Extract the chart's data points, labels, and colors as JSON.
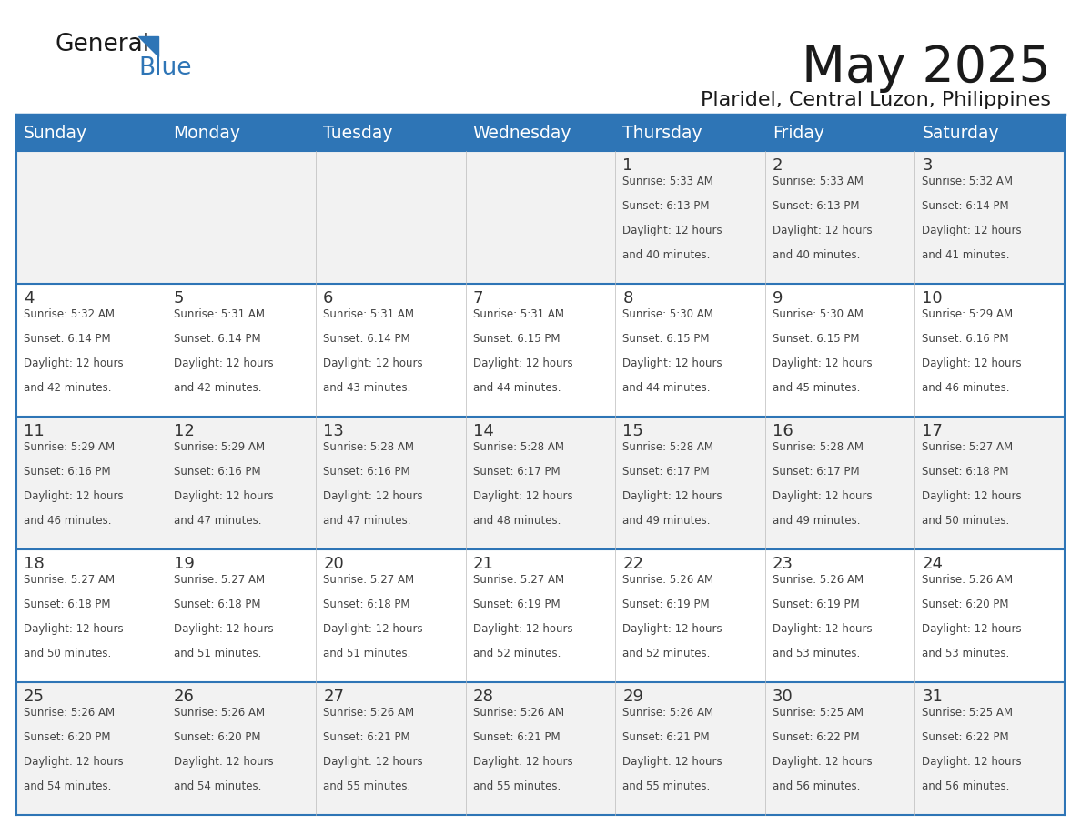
{
  "title": "May 2025",
  "subtitle": "Plaridel, Central Luzon, Philippines",
  "header_bg_color": "#2E75B6",
  "header_text_color": "#FFFFFF",
  "header_days": [
    "Sunday",
    "Monday",
    "Tuesday",
    "Wednesday",
    "Thursday",
    "Friday",
    "Saturday"
  ],
  "row_bg_even": "#F2F2F2",
  "row_bg_odd": "#FFFFFF",
  "separator_color": "#2E75B6",
  "text_color": "#444444",
  "day_num_color": "#333333",
  "calendar_data": [
    [
      {
        "day": "",
        "sunrise": "",
        "sunset": "",
        "daylight": ""
      },
      {
        "day": "",
        "sunrise": "",
        "sunset": "",
        "daylight": ""
      },
      {
        "day": "",
        "sunrise": "",
        "sunset": "",
        "daylight": ""
      },
      {
        "day": "",
        "sunrise": "",
        "sunset": "",
        "daylight": ""
      },
      {
        "day": "1",
        "sunrise": "5:33 AM",
        "sunset": "6:13 PM",
        "daylight": "12 hours and 40 minutes."
      },
      {
        "day": "2",
        "sunrise": "5:33 AM",
        "sunset": "6:13 PM",
        "daylight": "12 hours and 40 minutes."
      },
      {
        "day": "3",
        "sunrise": "5:32 AM",
        "sunset": "6:14 PM",
        "daylight": "12 hours and 41 minutes."
      }
    ],
    [
      {
        "day": "4",
        "sunrise": "5:32 AM",
        "sunset": "6:14 PM",
        "daylight": "12 hours and 42 minutes."
      },
      {
        "day": "5",
        "sunrise": "5:31 AM",
        "sunset": "6:14 PM",
        "daylight": "12 hours and 42 minutes."
      },
      {
        "day": "6",
        "sunrise": "5:31 AM",
        "sunset": "6:14 PM",
        "daylight": "12 hours and 43 minutes."
      },
      {
        "day": "7",
        "sunrise": "5:31 AM",
        "sunset": "6:15 PM",
        "daylight": "12 hours and 44 minutes."
      },
      {
        "day": "8",
        "sunrise": "5:30 AM",
        "sunset": "6:15 PM",
        "daylight": "12 hours and 44 minutes."
      },
      {
        "day": "9",
        "sunrise": "5:30 AM",
        "sunset": "6:15 PM",
        "daylight": "12 hours and 45 minutes."
      },
      {
        "day": "10",
        "sunrise": "5:29 AM",
        "sunset": "6:16 PM",
        "daylight": "12 hours and 46 minutes."
      }
    ],
    [
      {
        "day": "11",
        "sunrise": "5:29 AM",
        "sunset": "6:16 PM",
        "daylight": "12 hours and 46 minutes."
      },
      {
        "day": "12",
        "sunrise": "5:29 AM",
        "sunset": "6:16 PM",
        "daylight": "12 hours and 47 minutes."
      },
      {
        "day": "13",
        "sunrise": "5:28 AM",
        "sunset": "6:16 PM",
        "daylight": "12 hours and 47 minutes."
      },
      {
        "day": "14",
        "sunrise": "5:28 AM",
        "sunset": "6:17 PM",
        "daylight": "12 hours and 48 minutes."
      },
      {
        "day": "15",
        "sunrise": "5:28 AM",
        "sunset": "6:17 PM",
        "daylight": "12 hours and 49 minutes."
      },
      {
        "day": "16",
        "sunrise": "5:28 AM",
        "sunset": "6:17 PM",
        "daylight": "12 hours and 49 minutes."
      },
      {
        "day": "17",
        "sunrise": "5:27 AM",
        "sunset": "6:18 PM",
        "daylight": "12 hours and 50 minutes."
      }
    ],
    [
      {
        "day": "18",
        "sunrise": "5:27 AM",
        "sunset": "6:18 PM",
        "daylight": "12 hours and 50 minutes."
      },
      {
        "day": "19",
        "sunrise": "5:27 AM",
        "sunset": "6:18 PM",
        "daylight": "12 hours and 51 minutes."
      },
      {
        "day": "20",
        "sunrise": "5:27 AM",
        "sunset": "6:18 PM",
        "daylight": "12 hours and 51 minutes."
      },
      {
        "day": "21",
        "sunrise": "5:27 AM",
        "sunset": "6:19 PM",
        "daylight": "12 hours and 52 minutes."
      },
      {
        "day": "22",
        "sunrise": "5:26 AM",
        "sunset": "6:19 PM",
        "daylight": "12 hours and 52 minutes."
      },
      {
        "day": "23",
        "sunrise": "5:26 AM",
        "sunset": "6:19 PM",
        "daylight": "12 hours and 53 minutes."
      },
      {
        "day": "24",
        "sunrise": "5:26 AM",
        "sunset": "6:20 PM",
        "daylight": "12 hours and 53 minutes."
      }
    ],
    [
      {
        "day": "25",
        "sunrise": "5:26 AM",
        "sunset": "6:20 PM",
        "daylight": "12 hours and 54 minutes."
      },
      {
        "day": "26",
        "sunrise": "5:26 AM",
        "sunset": "6:20 PM",
        "daylight": "12 hours and 54 minutes."
      },
      {
        "day": "27",
        "sunrise": "5:26 AM",
        "sunset": "6:21 PM",
        "daylight": "12 hours and 55 minutes."
      },
      {
        "day": "28",
        "sunrise": "5:26 AM",
        "sunset": "6:21 PM",
        "daylight": "12 hours and 55 minutes."
      },
      {
        "day": "29",
        "sunrise": "5:26 AM",
        "sunset": "6:21 PM",
        "daylight": "12 hours and 55 minutes."
      },
      {
        "day": "30",
        "sunrise": "5:25 AM",
        "sunset": "6:22 PM",
        "daylight": "12 hours and 56 minutes."
      },
      {
        "day": "31",
        "sunrise": "5:25 AM",
        "sunset": "6:22 PM",
        "daylight": "12 hours and 56 minutes."
      }
    ]
  ],
  "logo_general_color": "#1a1a1a",
  "logo_blue_color": "#2E75B6"
}
